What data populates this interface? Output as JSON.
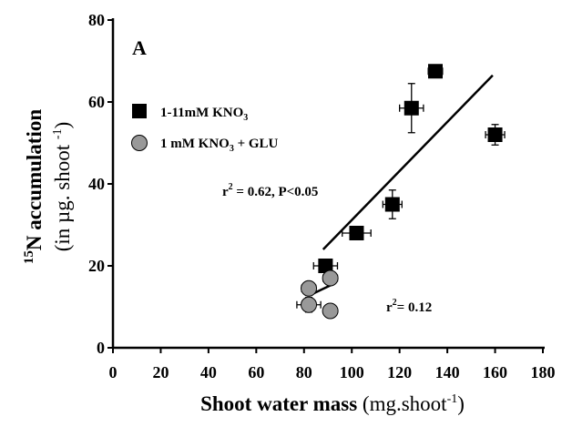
{
  "chart_data": {
    "type": "scatter",
    "panel_label": "A",
    "xlim": [
      0,
      180
    ],
    "ylim": [
      0,
      80
    ],
    "x_ticks": [
      0,
      20,
      40,
      60,
      80,
      100,
      120,
      140,
      160,
      180
    ],
    "y_ticks": [
      0,
      20,
      40,
      60,
      80
    ],
    "x_tick_labels": [
      "0",
      "20",
      "40",
      "60",
      "80",
      "100",
      "120",
      "140",
      "160",
      "180"
    ],
    "y_tick_labels": [
      "0",
      "20",
      "40",
      "60",
      "80"
    ],
    "xlabel": {
      "bold": "Shoot water mass",
      "unit": " (mg.shoot",
      "sup": "-1",
      "close": ")"
    },
    "ylabel": {
      "line1_sup": "15",
      "line1_main": "N accumulation",
      "line2_main": "(in µg. shoot ",
      "line2_sup": "-1",
      "line2_close": ")"
    },
    "legend_position": "upper-left",
    "series": [
      {
        "name": "1-11mM KNO3",
        "legend_label": {
          "main": "1-11mM KNO",
          "sub": "3",
          "rest": ""
        },
        "marker": "square",
        "color": "#000000",
        "points": [
          {
            "x": 135,
            "y": 67.5,
            "xerr": 3,
            "yerr": 0.8
          },
          {
            "x": 125,
            "y": 58.5,
            "xerr": 5,
            "yerr": 6
          },
          {
            "x": 160,
            "y": 52,
            "xerr": 4,
            "yerr": 2.5
          },
          {
            "x": 117,
            "y": 35,
            "xerr": 4,
            "yerr": 3.5
          },
          {
            "x": 102,
            "y": 28,
            "xerr": 6,
            "yerr": 0
          },
          {
            "x": 89,
            "y": 20,
            "xerr": 5,
            "yerr": 0
          }
        ],
        "fit": {
          "x": [
            88,
            159
          ],
          "y": [
            24,
            66.5
          ]
        },
        "annotation": {
          "main": "r",
          "sup": "2",
          "rest": " = 0.62, P<0.05"
        }
      },
      {
        "name": "1 mM KNO3 + GLU",
        "legend_label": {
          "main": "1 mM KNO",
          "sub": "3",
          "rest": " + GLU"
        },
        "marker": "circle",
        "color": "#999999",
        "points": [
          {
            "x": 91,
            "y": 17,
            "xerr": 3,
            "yerr": 0
          },
          {
            "x": 82,
            "y": 14.5,
            "xerr": 3,
            "yerr": 0
          },
          {
            "x": 82,
            "y": 10.5,
            "xerr": 5,
            "yerr": 1.8
          },
          {
            "x": 91,
            "y": 9,
            "xerr": 0,
            "yerr": 0
          }
        ],
        "fit": {
          "x": [
            83,
            92
          ],
          "y": [
            13,
            15.5
          ]
        },
        "annotation": {
          "main": "r",
          "sup": "2",
          "rest": "= 0.12"
        }
      }
    ]
  }
}
